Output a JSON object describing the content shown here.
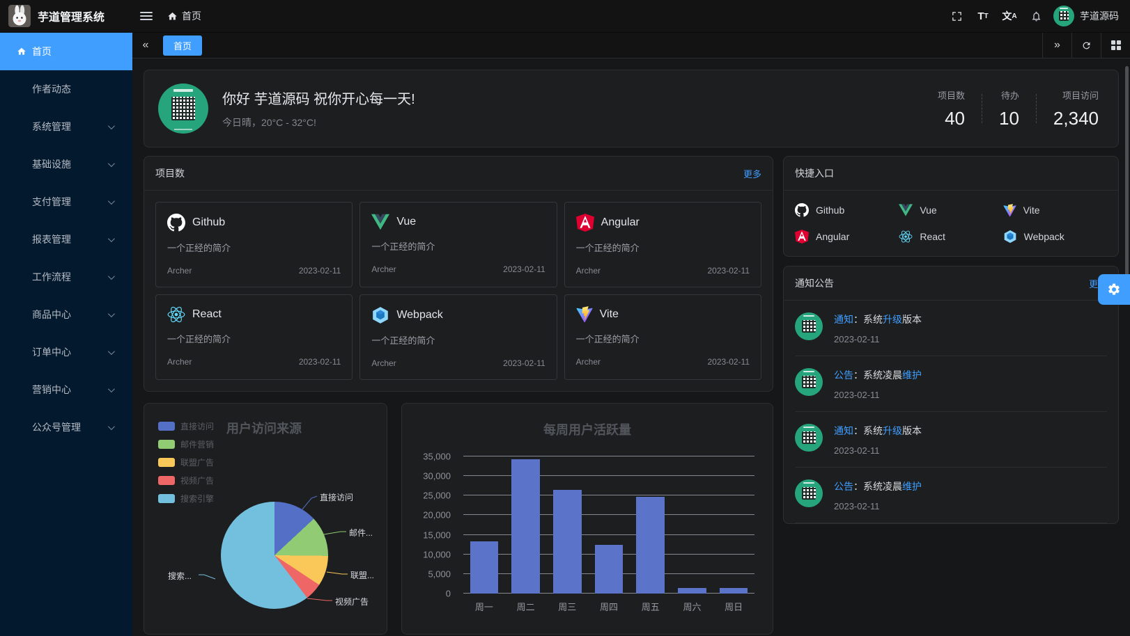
{
  "header": {
    "app_title": "芋道管理系统",
    "breadcrumb_home": "首页",
    "font_icon_big": "T",
    "font_icon_small": "T",
    "lang_icon_cn": "文",
    "lang_icon_a": "A",
    "username": "芋道源码"
  },
  "sidebar": {
    "items": [
      {
        "label": "首页",
        "active": true,
        "has_children": false
      },
      {
        "label": "作者动态",
        "active": false,
        "has_children": false
      },
      {
        "label": "系统管理",
        "active": false,
        "has_children": true
      },
      {
        "label": "基础设施",
        "active": false,
        "has_children": true
      },
      {
        "label": "支付管理",
        "active": false,
        "has_children": true
      },
      {
        "label": "报表管理",
        "active": false,
        "has_children": true
      },
      {
        "label": "工作流程",
        "active": false,
        "has_children": true
      },
      {
        "label": "商品中心",
        "active": false,
        "has_children": true
      },
      {
        "label": "订单中心",
        "active": false,
        "has_children": true
      },
      {
        "label": "营销中心",
        "active": false,
        "has_children": true
      },
      {
        "label": "公众号管理",
        "active": false,
        "has_children": true
      }
    ]
  },
  "tabbar": {
    "active_tab": "首页"
  },
  "welcome": {
    "greeting": "你好 芋道源码 祝你开心每一天!",
    "weather": "今日晴，20°C - 32°C!",
    "stats": [
      {
        "label": "项目数",
        "value": "40"
      },
      {
        "label": "待办",
        "value": "10"
      },
      {
        "label": "项目访问",
        "value": "2,340"
      }
    ]
  },
  "projects": {
    "title": "项目数",
    "more_label": "更多",
    "items": [
      {
        "icon": "github-icon",
        "name": "Github",
        "desc": "一个正经的简介",
        "author": "Archer",
        "date": "2023-02-11"
      },
      {
        "icon": "vue-icon",
        "name": "Vue",
        "desc": "一个正经的简介",
        "author": "Archer",
        "date": "2023-02-11"
      },
      {
        "icon": "angular-icon",
        "name": "Angular",
        "desc": "一个正经的简介",
        "author": "Archer",
        "date": "2023-02-11"
      },
      {
        "icon": "react-icon",
        "name": "React",
        "desc": "一个正经的简介",
        "author": "Archer",
        "date": "2023-02-11"
      },
      {
        "icon": "webpack-icon",
        "name": "Webpack",
        "desc": "一个正经的简介",
        "author": "Archer",
        "date": "2023-02-11"
      },
      {
        "icon": "vite-icon",
        "name": "Vite",
        "desc": "一个正经的简介",
        "author": "Archer",
        "date": "2023-02-11"
      }
    ]
  },
  "shortcuts": {
    "title": "快捷入口",
    "items": [
      {
        "icon": "github-icon",
        "label": "Github"
      },
      {
        "icon": "vue-icon",
        "label": "Vue"
      },
      {
        "icon": "vite-icon",
        "label": "Vite"
      },
      {
        "icon": "angular-icon",
        "label": "Angular"
      },
      {
        "icon": "react-icon",
        "label": "React"
      },
      {
        "icon": "webpack-icon",
        "label": "Webpack"
      }
    ]
  },
  "notices": {
    "title": "通知公告",
    "more_label": "更多",
    "items": [
      {
        "prefix": "通知",
        "mid": "：系统",
        "highlight": "升级",
        "suffix": "版本",
        "date": "2023-02-11"
      },
      {
        "prefix": "公告",
        "mid": "：系统凌晨",
        "highlight": "维护",
        "suffix": "",
        "date": "2023-02-11"
      },
      {
        "prefix": "通知",
        "mid": "：系统",
        "highlight": "升级",
        "suffix": "版本",
        "date": "2023-02-11"
      },
      {
        "prefix": "公告",
        "mid": "：系统凌晨",
        "highlight": "维护",
        "suffix": "",
        "date": "2023-02-11"
      }
    ]
  },
  "colors": {
    "accent": "#409eff",
    "sidebar_bg": "#03192e",
    "card_bg": "#1d1e1f",
    "qr_green": "#26a57c"
  },
  "chart_data": [
    {
      "type": "pie",
      "title": "用户访问来源",
      "labels": [
        "直接访问",
        "邮件营销",
        "联盟广告",
        "视频广告",
        "搜索引擎"
      ],
      "values": [
        335,
        310,
        234,
        135,
        1548
      ],
      "colors": [
        "#5470c6",
        "#91cc75",
        "#fac858",
        "#ee6666",
        "#73c0de"
      ],
      "callout_labels": [
        "直接访问",
        "邮件...",
        "联盟...",
        "视频广告",
        "搜索..."
      ],
      "legend_position": "left"
    },
    {
      "type": "bar",
      "title": "每周用户活跃量",
      "categories": [
        "周一",
        "周二",
        "周三",
        "周四",
        "周五",
        "周六",
        "周日"
      ],
      "values": [
        13300,
        34300,
        26400,
        12400,
        24700,
        1400,
        1400
      ],
      "ylim": [
        0,
        35000
      ],
      "ytick_step": 5000,
      "bar_color": "#5b74c9",
      "grid": true,
      "xlabel": "",
      "ylabel": ""
    }
  ]
}
